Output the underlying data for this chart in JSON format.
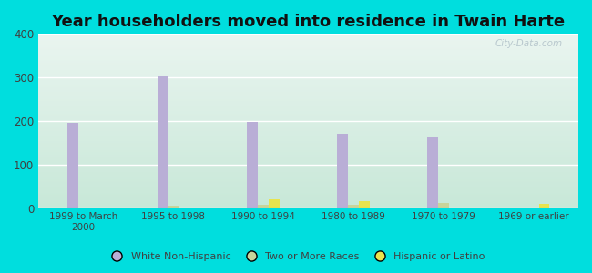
{
  "title": "Year householders moved into residence in Twain Harte",
  "categories": [
    "1999 to March\n2000",
    "1995 to 1998",
    "1990 to 1994",
    "1980 to 1989",
    "1970 to 1979",
    "1969 or earlier"
  ],
  "white_non_hispanic": [
    195,
    302,
    198,
    171,
    163,
    0
  ],
  "two_or_more_races": [
    0,
    5,
    8,
    8,
    12,
    0
  ],
  "hispanic_or_latino": [
    0,
    0,
    20,
    16,
    0,
    9
  ],
  "colors": {
    "white_non_hispanic": "#b9aed6",
    "two_or_more_races": "#c8d49a",
    "hispanic_or_latino": "#e8e44e"
  },
  "legend_labels": [
    "White Non-Hispanic",
    "Two or More Races",
    "Hispanic or Latino"
  ],
  "ylim": [
    0,
    400
  ],
  "yticks": [
    0,
    100,
    200,
    300,
    400
  ],
  "background_outer": "#00dede",
  "background_plot_top": "#eaf5f0",
  "background_plot_bottom": "#c8e8d8",
  "title_fontsize": 13,
  "bar_width": 0.12,
  "watermark": "City-Data.com"
}
